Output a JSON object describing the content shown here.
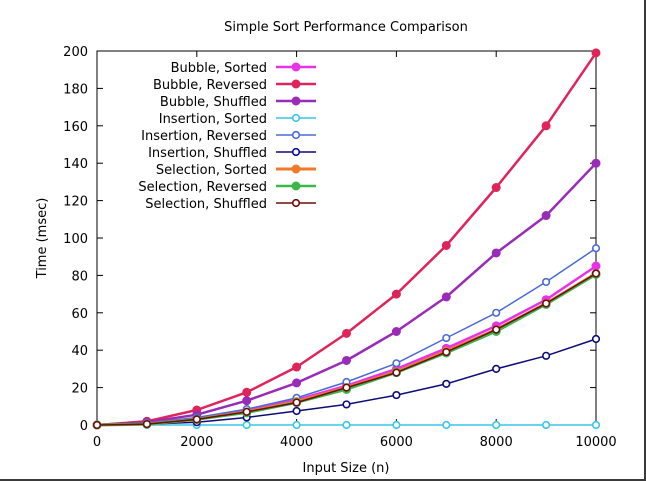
{
  "chart_data": {
    "type": "line",
    "title": "Simple Sort Performance Comparison",
    "xlabel": "Input Size (n)",
    "ylabel": "Time (msec)",
    "xlim": [
      0,
      10000
    ],
    "ylim": [
      0,
      200
    ],
    "x_ticks": [
      0,
      2000,
      4000,
      6000,
      8000,
      10000
    ],
    "y_ticks": [
      0,
      20,
      40,
      60,
      80,
      100,
      120,
      140,
      160,
      180,
      200
    ],
    "grid": false,
    "legend_position": "top-left",
    "x": [
      0,
      1000,
      2000,
      3000,
      4000,
      5000,
      6000,
      7000,
      8000,
      9000,
      10000
    ],
    "series": [
      {
        "name": "Bubble, Sorted",
        "color": "#e832e8",
        "marker": "filled",
        "line_width": 2.5,
        "values": [
          0,
          1,
          3.5,
          7.5,
          13.5,
          21,
          30,
          41,
          53,
          67,
          85
        ]
      },
      {
        "name": "Bubble, Reversed",
        "color": "#e0245a",
        "marker": "filled",
        "line_width": 2.5,
        "values": [
          0,
          2,
          8,
          17.5,
          31,
          49,
          70,
          96,
          127,
          160,
          199
        ]
      },
      {
        "name": "Bubble, Shuffled",
        "color": "#9a2bb8",
        "marker": "filled",
        "line_width": 2.5,
        "values": [
          0,
          1.5,
          5.5,
          13,
          22.5,
          34.5,
          50,
          68.5,
          92,
          112,
          140
        ]
      },
      {
        "name": "Insertion, Sorted",
        "color": "#39c6e8",
        "marker": "hollow",
        "line_width": 1.5,
        "values": [
          0,
          0,
          0,
          0,
          0,
          0,
          0,
          0,
          0,
          0,
          0
        ]
      },
      {
        "name": "Insertion, Reversed",
        "color": "#4a6ad6",
        "marker": "hollow",
        "line_width": 1.5,
        "values": [
          0,
          1,
          4,
          8.5,
          14.5,
          23,
          33,
          46.5,
          60,
          76.5,
          94.5
        ]
      },
      {
        "name": "Insertion, Shuffled",
        "color": "#0c0c7a",
        "marker": "hollow",
        "line_width": 1.5,
        "values": [
          0,
          0.5,
          1.5,
          4,
          7.5,
          11,
          16,
          22,
          30,
          37,
          46
        ]
      },
      {
        "name": "Selection, Sorted",
        "color": "#f07a2a",
        "marker": "filled",
        "line_width": 3,
        "values": [
          0,
          0.5,
          3,
          7,
          12.5,
          20,
          28.5,
          39.5,
          51,
          65,
          81
        ]
      },
      {
        "name": "Selection, Reversed",
        "color": "#3cb84a",
        "marker": "filled",
        "line_width": 2.5,
        "values": [
          0,
          0.5,
          3,
          6.5,
          12,
          19,
          28,
          38.5,
          50,
          64.5,
          80.5
        ]
      },
      {
        "name": "Selection, Shuffled",
        "color": "#6e0d0d",
        "marker": "hollow",
        "line_width": 1.5,
        "values": [
          0,
          0.5,
          3,
          7,
          12,
          20,
          28,
          39,
          51,
          65,
          81
        ]
      }
    ]
  }
}
